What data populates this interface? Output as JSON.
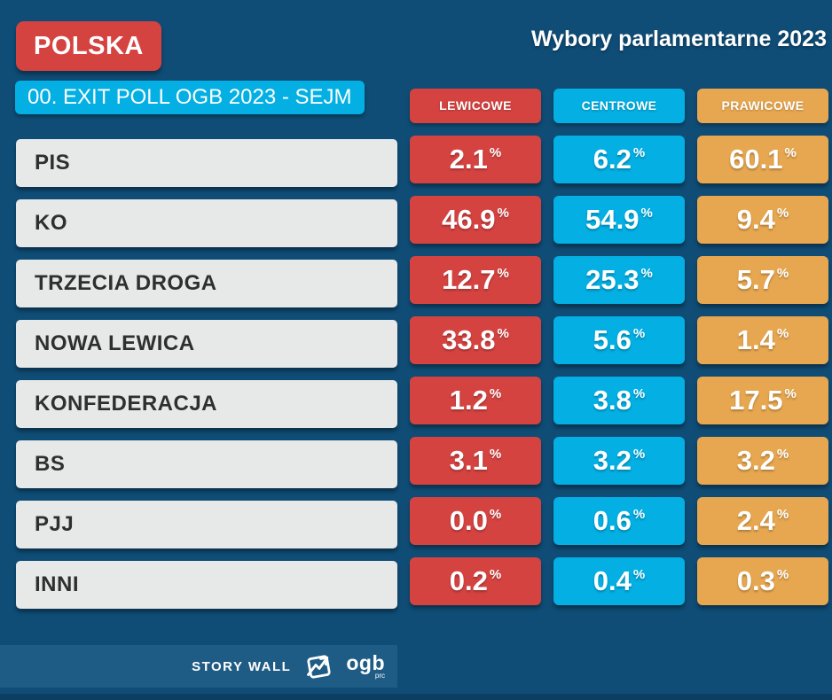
{
  "page": {
    "country_badge": "POLSKA",
    "title": "Wybory parlamentarne 2023",
    "subtitle_badge": "00. EXIT POLL OGB 2023 - SEJM"
  },
  "columns": [
    {
      "label": "LEWICOWE",
      "color": "#d54341"
    },
    {
      "label": "CENTROWE",
      "color": "#03afe3"
    },
    {
      "label": "PRAWICOWE",
      "color": "#e7a750"
    }
  ],
  "rows": [
    {
      "party": "PIS",
      "values": [
        "2.1",
        "6.2",
        "60.1"
      ]
    },
    {
      "party": "KO",
      "values": [
        "46.9",
        "54.9",
        "9.4"
      ]
    },
    {
      "party": "TRZECIA DROGA",
      "values": [
        "12.7",
        "25.3",
        "5.7"
      ]
    },
    {
      "party": "NOWA LEWICA",
      "values": [
        "33.8",
        "5.6",
        "1.4"
      ]
    },
    {
      "party": "KONFEDERACJA",
      "values": [
        "1.2",
        "3.8",
        "17.5"
      ]
    },
    {
      "party": "BS",
      "values": [
        "3.1",
        "3.2",
        "3.2"
      ]
    },
    {
      "party": "PJJ",
      "values": [
        "0.0",
        "0.6",
        "2.4"
      ]
    },
    {
      "party": "INNI",
      "values": [
        "0.2",
        "0.4",
        "0.3"
      ]
    }
  ],
  "units": {
    "percent": "%"
  },
  "footer": {
    "brand": "STORY WALL",
    "logo_text": "ogb",
    "logo_sub": "prc",
    "logo_icon": "trending-arrow-in-frame-icon"
  },
  "colors": {
    "background": "#0f4d77",
    "red": "#d54341",
    "cyan": "#03afe3",
    "orange": "#e7a750",
    "label_bg": "#e7e8e8",
    "label_text": "#2f2f2f",
    "footer_band": "#1e5c85",
    "bottom_strip": "#0b3e61",
    "text": "#ffffff"
  },
  "chart_data": {
    "type": "table",
    "title": "Wybory parlamentarne 2023",
    "subtitle": "00. EXIT POLL OGB 2023 - SEJM",
    "region": "POLSKA",
    "categories": [
      "PIS",
      "KO",
      "TRZECIA DROGA",
      "NOWA LEWICA",
      "KONFEDERACJA",
      "BS",
      "PJJ",
      "INNI"
    ],
    "series": [
      {
        "name": "LEWICOWE",
        "values": [
          2.1,
          46.9,
          12.7,
          33.8,
          1.2,
          3.1,
          0.0,
          0.2
        ]
      },
      {
        "name": "CENTROWE",
        "values": [
          6.2,
          54.9,
          25.3,
          5.6,
          3.8,
          3.2,
          0.6,
          0.4
        ]
      },
      {
        "name": "PRAWICOWE",
        "values": [
          60.1,
          9.4,
          5.7,
          1.4,
          17.5,
          3.2,
          2.4,
          0.3
        ]
      }
    ],
    "unit": "%",
    "legend_position": "top",
    "grid": false
  }
}
